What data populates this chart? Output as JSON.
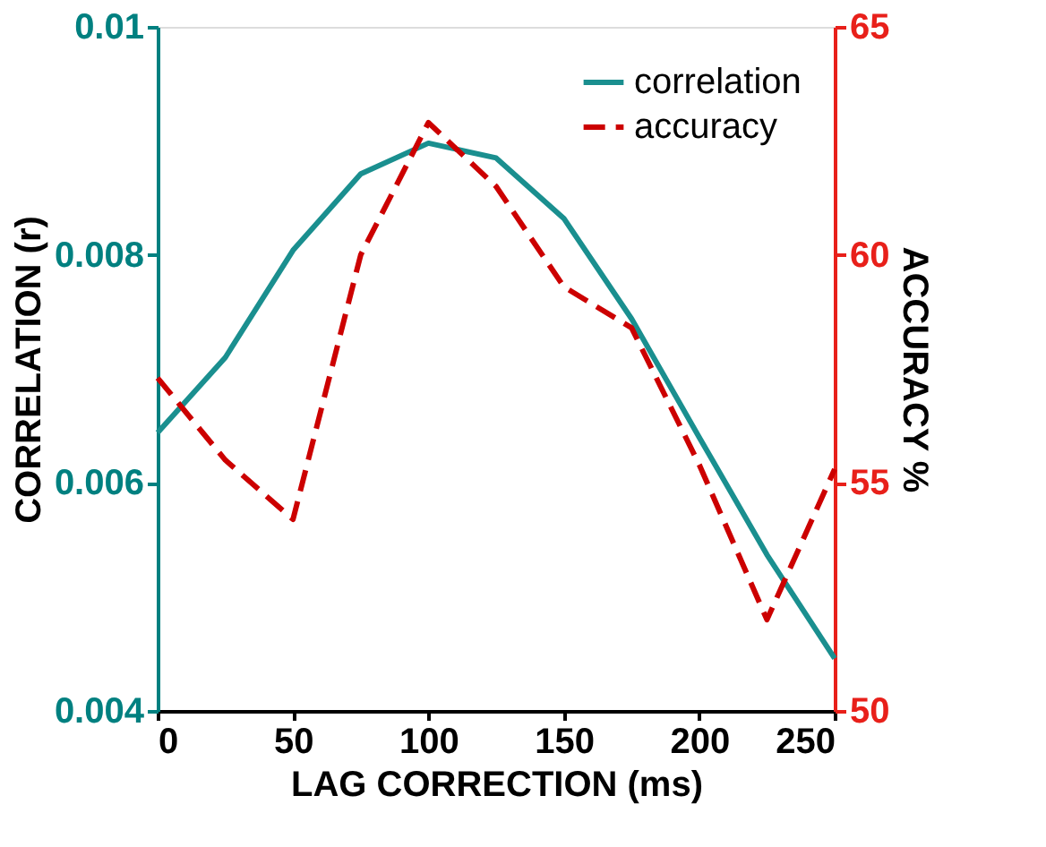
{
  "chart_data": {
    "type": "line",
    "xlabel": "LAG CORRECTION (ms)",
    "ylabel": "CORRELATION (r)",
    "y2label": "ACCURACY %",
    "x": [
      0,
      25,
      50,
      75,
      100,
      125,
      150,
      175,
      200,
      225,
      250
    ],
    "series": [
      {
        "name": "correlation",
        "color": "#1a8f8f",
        "line_style": "solid",
        "values": [
          0.00644,
          0.0071,
          0.00804,
          0.00871,
          0.00898,
          0.00885,
          0.00832,
          0.00744,
          0.0064,
          0.00537,
          0.00446
        ]
      },
      {
        "name": "accuracy",
        "color": "#cc0000",
        "line_style": "dashed",
        "axis": "y2",
        "values": [
          57.3,
          55.5,
          54.2,
          60.0,
          62.9,
          61.5,
          59.3,
          58.4,
          55.4,
          52.0,
          55.3
        ]
      }
    ],
    "xlim": [
      0,
      250
    ],
    "xticks": [
      0,
      50,
      100,
      150,
      200,
      250
    ],
    "ylim": [
      0.004,
      0.01
    ],
    "yticks": [
      0.004,
      0.006,
      0.008,
      {
        "value": 0.01,
        "label": "0.01"
      }
    ],
    "y2lim": [
      50,
      65
    ],
    "y2ticks": [
      50,
      55,
      60,
      65
    ],
    "grid": false,
    "legend": "top right",
    "marker": "none"
  }
}
